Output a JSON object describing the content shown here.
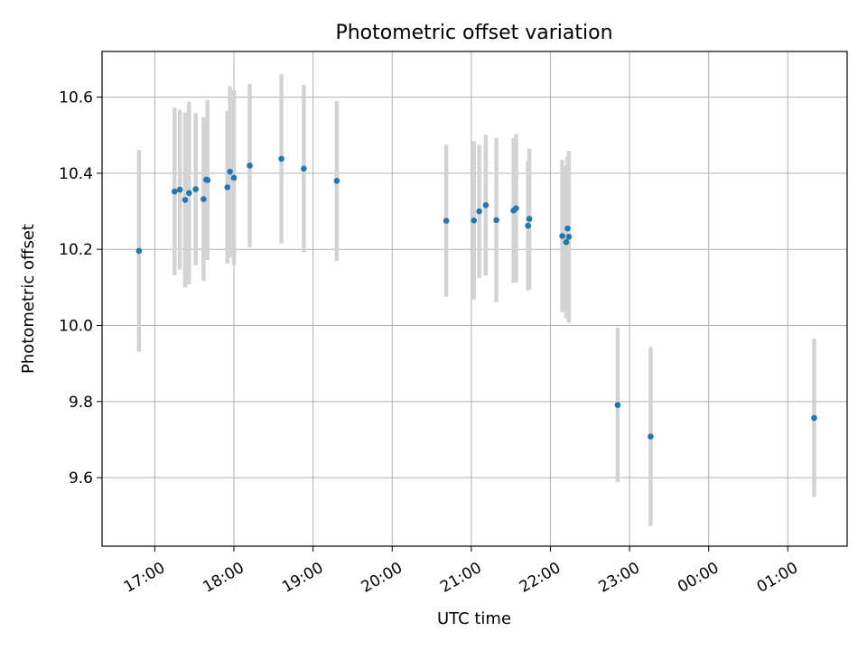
{
  "chart_data": {
    "type": "scatter",
    "title": "Photometric offset variation",
    "xlabel": "UTC time",
    "ylabel": "Photometric offset",
    "x_unit": "UTC time of day (hours; values >= 24 fall on the following day)",
    "xlim": [
      "16:20",
      "25:45"
    ],
    "ylim": [
      9.42,
      10.72
    ],
    "x_ticks": [
      "17:00",
      "18:00",
      "19:00",
      "20:00",
      "21:00",
      "22:00",
      "23:00",
      "00:00",
      "01:00"
    ],
    "y_ticks": [
      "9.6",
      "9.8",
      "10.0",
      "10.2",
      "10.4",
      "10.6"
    ],
    "grid": true,
    "marker_color": "#1f77b4",
    "errorbar_color": "#d3d3d3",
    "series": [
      {
        "points": [
          {
            "x": "16:48",
            "y": 10.196,
            "err": 0.265
          },
          {
            "x": "17:15",
            "y": 10.352,
            "err": 0.22
          },
          {
            "x": "17:19",
            "y": 10.357,
            "err": 0.21
          },
          {
            "x": "17:23",
            "y": 10.33,
            "err": 0.23
          },
          {
            "x": "17:26",
            "y": 10.348,
            "err": 0.24
          },
          {
            "x": "17:31",
            "y": 10.358,
            "err": 0.2
          },
          {
            "x": "17:37",
            "y": 10.332,
            "err": 0.215
          },
          {
            "x": "17:39",
            "y": 10.383,
            "err": 0.165
          },
          {
            "x": "17:40",
            "y": 10.382,
            "err": 0.21
          },
          {
            "x": "17:55",
            "y": 10.363,
            "err": 0.2
          },
          {
            "x": "17:57",
            "y": 10.404,
            "err": 0.225
          },
          {
            "x": "18:00",
            "y": 10.388,
            "err": 0.23
          },
          {
            "x": "18:12",
            "y": 10.42,
            "err": 0.215
          },
          {
            "x": "18:36",
            "y": 10.438,
            "err": 0.222
          },
          {
            "x": "18:53",
            "y": 10.412,
            "err": 0.22
          },
          {
            "x": "19:18",
            "y": 10.38,
            "err": 0.21
          },
          {
            "x": "20:41",
            "y": 10.275,
            "err": 0.2
          },
          {
            "x": "21:02",
            "y": 10.276,
            "err": 0.208
          },
          {
            "x": "21:06",
            "y": 10.3,
            "err": 0.175
          },
          {
            "x": "21:11",
            "y": 10.316,
            "err": 0.185
          },
          {
            "x": "21:19",
            "y": 10.277,
            "err": 0.216
          },
          {
            "x": "21:32",
            "y": 10.302,
            "err": 0.19
          },
          {
            "x": "21:34",
            "y": 10.308,
            "err": 0.195
          },
          {
            "x": "21:43",
            "y": 10.262,
            "err": 0.17
          },
          {
            "x": "21:44",
            "y": 10.28,
            "err": 0.185
          },
          {
            "x": "22:09",
            "y": 10.235,
            "err": 0.2
          },
          {
            "x": "22:12",
            "y": 10.219,
            "err": 0.2
          },
          {
            "x": "22:13",
            "y": 10.255,
            "err": 0.19
          },
          {
            "x": "22:14",
            "y": 10.233,
            "err": 0.226
          },
          {
            "x": "22:51",
            "y": 9.791,
            "err": 0.203
          },
          {
            "x": "23:16",
            "y": 9.708,
            "err": 0.235
          },
          {
            "x": "25:20",
            "y": 9.757,
            "err": 0.208
          }
        ]
      }
    ]
  }
}
